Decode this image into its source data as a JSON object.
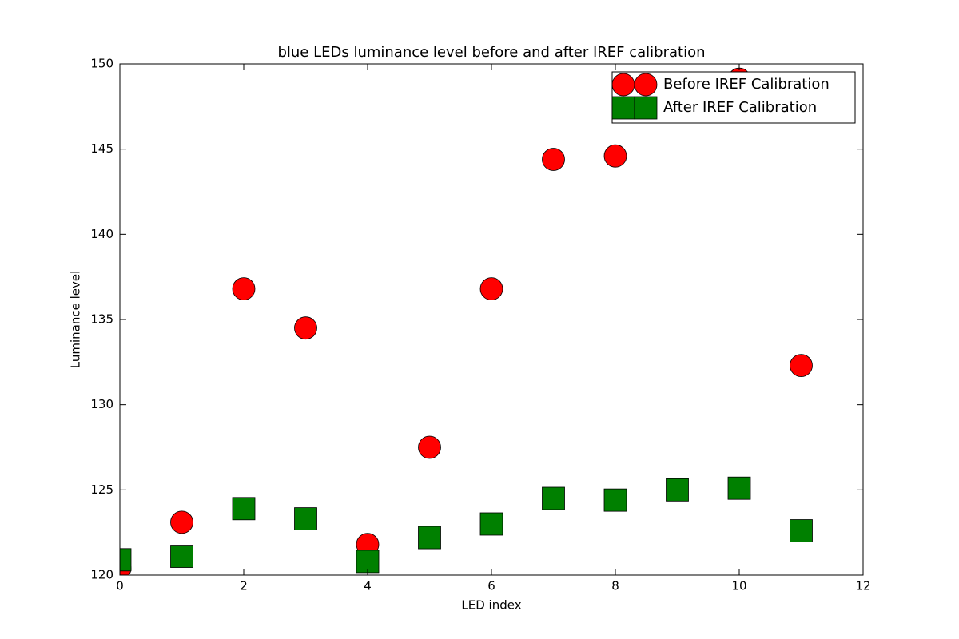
{
  "chart_data": {
    "type": "scatter",
    "title": "blue LEDs luminance level before and after IREF calibration",
    "x_label": "LED index",
    "y_label": "Luminance level",
    "x": [
      0,
      1,
      2,
      3,
      4,
      5,
      6,
      7,
      8,
      9,
      10,
      11
    ],
    "series": [
      {
        "name": "Before IREF Calibration",
        "color": "#ff0000",
        "marker": "circle",
        "values": [
          120.4,
          123.1,
          136.8,
          134.5,
          121.8,
          127.5,
          136.8,
          144.4,
          144.6,
          null,
          149.1,
          132.3
        ]
      },
      {
        "name": "After IREF Calibration",
        "color": "#008000",
        "marker": "square",
        "values": [
          120.9,
          121.1,
          123.9,
          123.3,
          120.8,
          122.2,
          123.0,
          124.5,
          124.4,
          125.0,
          125.1,
          122.6
        ]
      }
    ],
    "xlim": [
      0,
      12
    ],
    "xticks": [
      0,
      2,
      4,
      6,
      8,
      10,
      12
    ],
    "ylim": [
      120,
      150
    ],
    "yticks": [
      120,
      125,
      130,
      135,
      140,
      145,
      150
    ],
    "legend": "upper right"
  }
}
